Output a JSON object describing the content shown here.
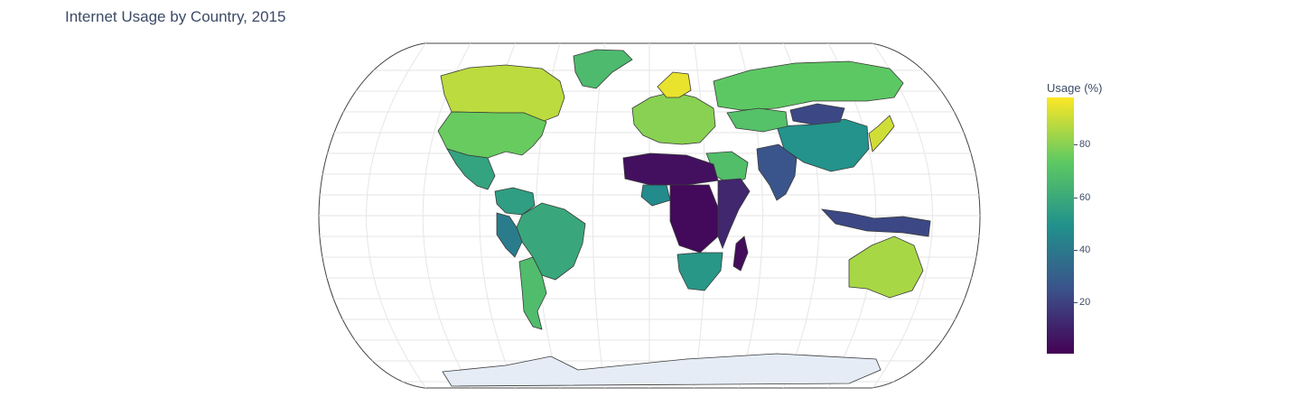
{
  "title": "Internet Usage by Country, 2015",
  "colorbar": {
    "title": "Usage (%)",
    "ticks": [
      "20",
      "40",
      "60",
      "80"
    ],
    "tick_values": [
      20,
      40,
      60,
      80
    ],
    "range": [
      0.5,
      98
    ],
    "colorscale": "viridis",
    "colors": [
      "#440154",
      "#3b528b",
      "#21918c",
      "#5ec962",
      "#fde725"
    ]
  },
  "map": {
    "projection": "natural earth",
    "land_no_data_color": "#e5ecf6",
    "regions": [
      {
        "name": "Canada",
        "value": 88
      },
      {
        "name": "United States",
        "value": 75
      },
      {
        "name": "Mexico",
        "value": 57
      },
      {
        "name": "Brazil",
        "value": 59
      },
      {
        "name": "Argentina",
        "value": 68
      },
      {
        "name": "Peru",
        "value": 41
      },
      {
        "name": "Colombia",
        "value": 55
      },
      {
        "name": "Greenland",
        "value": 67
      },
      {
        "name": "Russia",
        "value": 73
      },
      {
        "name": "China",
        "value": 50
      },
      {
        "name": "India",
        "value": 26
      },
      {
        "name": "Australia",
        "value": 85
      },
      {
        "name": "Japan",
        "value": 91
      },
      {
        "name": "Saudi Arabia",
        "value": 69
      },
      {
        "name": "Kazakhstan",
        "value": 70
      },
      {
        "name": "Mongolia",
        "value": 22
      },
      {
        "name": "Indonesia",
        "value": 22
      },
      {
        "name": "Nigeria",
        "value": 47
      },
      {
        "name": "Sahel",
        "value": 5
      },
      {
        "name": "Central Africa",
        "value": 3
      },
      {
        "name": "East Africa",
        "value": 12
      },
      {
        "name": "South Africa",
        "value": 52
      },
      {
        "name": "Madagascar",
        "value": 4
      },
      {
        "name": "Europe",
        "value": 80
      },
      {
        "name": "Scandinavia",
        "value": 95
      }
    ]
  }
}
